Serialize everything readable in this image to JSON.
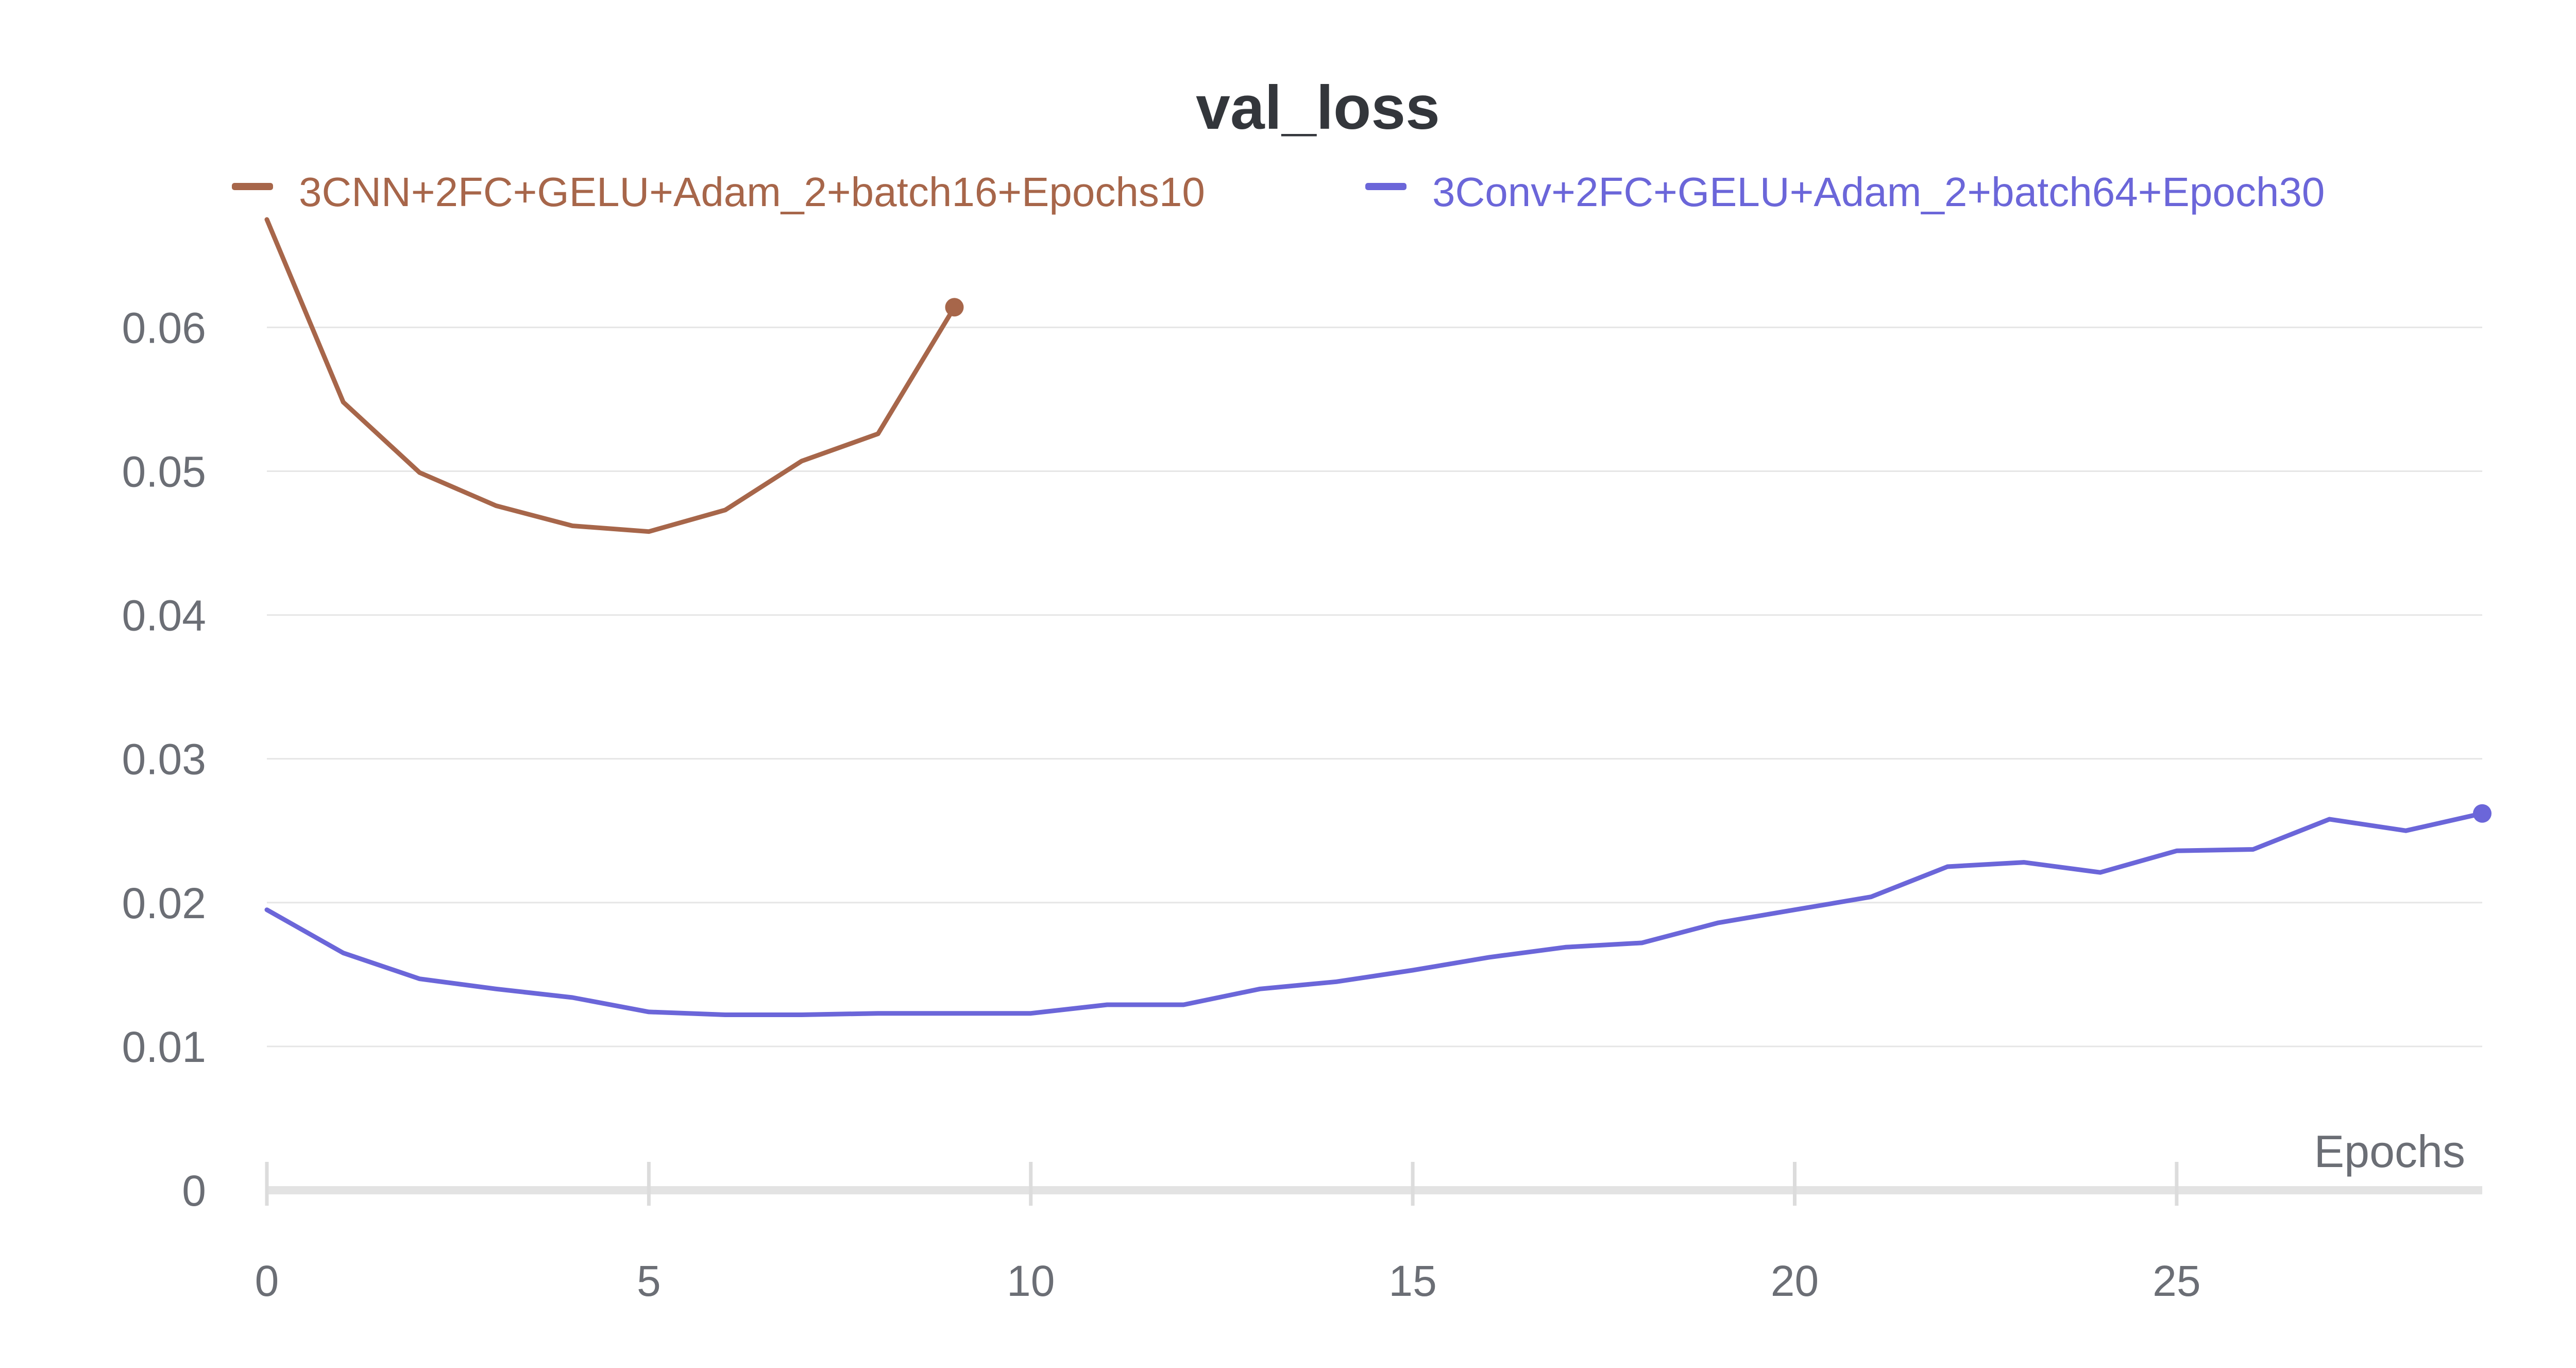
{
  "chart_data": {
    "type": "line",
    "title": "val_loss",
    "xlabel": "Epochs",
    "ylabel": "",
    "xlim": [
      0,
      29
    ],
    "ylim": [
      0,
      0.067
    ],
    "x_ticks": [
      0,
      5,
      10,
      15,
      20,
      25
    ],
    "y_ticks": [
      0,
      0.01,
      0.02,
      0.03,
      0.04,
      0.05,
      0.06
    ],
    "y_tick_labels": [
      "0",
      "0.01",
      "0.02",
      "0.03",
      "0.04",
      "0.05",
      "0.06"
    ],
    "grid": "horizontal",
    "legend_position": "top",
    "series": [
      {
        "name": "3CNN+2FC+GELU+Adam_2+batch16+Epochs10",
        "color": "#a7664a",
        "x": [
          0,
          1,
          2,
          3,
          4,
          5,
          6,
          7,
          8,
          9
        ],
        "values": [
          0.0675,
          0.0548,
          0.0499,
          0.0476,
          0.0462,
          0.0458,
          0.0473,
          0.0507,
          0.0526,
          0.0614
        ]
      },
      {
        "name": "3Conv+2FC+GELU+Adam_2+batch64+Epoch30",
        "color": "#6b66d9",
        "x": [
          0,
          1,
          2,
          3,
          4,
          5,
          6,
          7,
          8,
          9,
          10,
          11,
          12,
          13,
          14,
          15,
          16,
          17,
          18,
          19,
          20,
          21,
          22,
          23,
          24,
          25,
          26,
          27,
          28,
          29
        ],
        "values": [
          0.0195,
          0.0165,
          0.0147,
          0.014,
          0.0134,
          0.0124,
          0.0122,
          0.0122,
          0.0123,
          0.0123,
          0.0123,
          0.0129,
          0.0129,
          0.014,
          0.0145,
          0.0153,
          0.0162,
          0.0169,
          0.0172,
          0.0186,
          0.0195,
          0.0204,
          0.0225,
          0.0228,
          0.0221,
          0.0236,
          0.0237,
          0.0258,
          0.025,
          0.0262
        ]
      }
    ]
  }
}
